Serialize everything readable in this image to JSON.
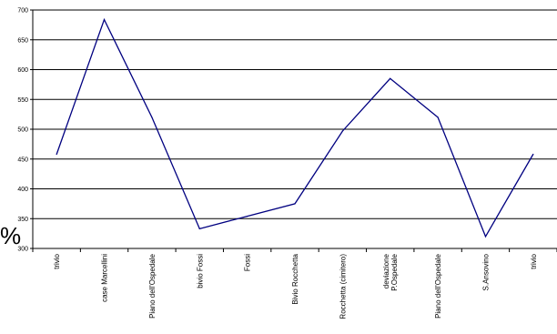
{
  "stray_glyph": "%",
  "chart_data": {
    "type": "line",
    "title": "",
    "xlabel": "",
    "ylabel": "",
    "ylim": [
      300,
      700
    ],
    "yticks": [
      300,
      350,
      400,
      450,
      500,
      550,
      600,
      650,
      700
    ],
    "grid": "horizontal",
    "legend": "none",
    "categories": [
      "trivio",
      "case Marcellini",
      "Piano dell'Ospedale",
      "bivio Fossi",
      "Fossi",
      "Bivio Rocchetta",
      "Rocchetta (cimitero)",
      "deviazione P.Ospedale",
      "Piano dell'Ospedale",
      "S.Ansovino",
      "trivio"
    ],
    "category_lines": [
      [
        "trivio"
      ],
      [
        "case Marcellini"
      ],
      [
        "Piano dell'Ospedale"
      ],
      [
        "bivio Fossi"
      ],
      [
        "Fossi"
      ],
      [
        "Bivio Rocchetta"
      ],
      [
        "Rocchetta (cimitero)"
      ],
      [
        "deviazione",
        "P.Ospedale"
      ],
      [
        "Piano dell'Ospedale"
      ],
      [
        "S.Ansovino"
      ],
      [
        "trivio"
      ]
    ],
    "series": [
      {
        "values": [
          458,
          684,
          520,
          333,
          354,
          375,
          497,
          585,
          520,
          320,
          458
        ]
      }
    ],
    "colors": {
      "line": "#000080",
      "grid": "#000000",
      "axis": "#000000"
    }
  }
}
